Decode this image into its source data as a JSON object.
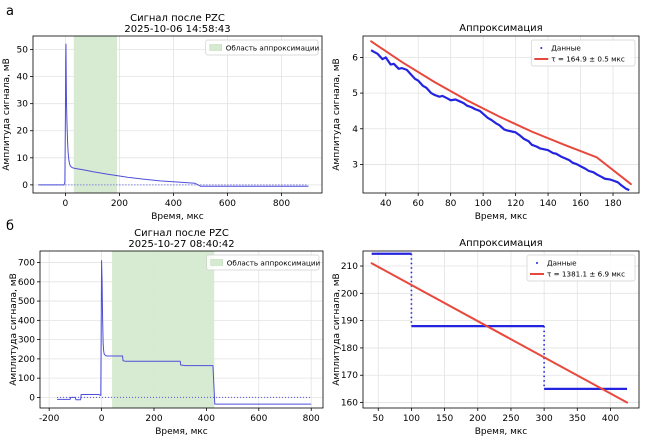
{
  "figure": {
    "row_labels": [
      "а",
      "б"
    ]
  },
  "charts": [
    {
      "id": "a-left",
      "title": "Сигнал после PZC",
      "subtitle": "2025-10-06 14:58:43",
      "xlabel": "Время, мкс",
      "ylabel": "Амплитуда сигнала, мВ",
      "xlim": [
        -120,
        950
      ],
      "ylim": [
        -3,
        55
      ],
      "xticks": [
        0,
        200,
        400,
        600,
        800
      ],
      "yticks": [
        0,
        10,
        20,
        30,
        40,
        50
      ],
      "legend": {
        "position": "top-right",
        "entries": [
          {
            "label": "Область аппроксимации",
            "kind": "patch",
            "color": "#d5ead0"
          }
        ]
      },
      "span": [
        31,
        191
      ],
      "grid": true,
      "series": [
        {
          "kind": "line",
          "color": "#4f4fd9",
          "x": [
            -100,
            -20,
            -5,
            -2,
            0,
            1,
            2,
            3,
            4,
            6,
            8,
            10,
            13,
            16,
            20,
            25,
            31,
            40,
            60,
            80,
            100,
            130,
            160,
            191,
            230,
            280,
            350,
            420,
            480,
            500,
            600,
            700,
            800,
            900
          ],
          "y": [
            0,
            0,
            0,
            1,
            25,
            45,
            52,
            40,
            30,
            22,
            16,
            12,
            9,
            7.5,
            6.8,
            6.4,
            6.2,
            6.0,
            5.7,
            5.3,
            4.9,
            4.4,
            3.9,
            3.4,
            2.8,
            2.2,
            1.5,
            1.0,
            0.6,
            -0.5,
            -0.5,
            -0.5,
            -0.5,
            -0.5
          ]
        },
        {
          "kind": "dotted",
          "color": "#4f4fd9",
          "x": [
            -100,
            900
          ],
          "y": [
            0,
            0
          ]
        }
      ]
    },
    {
      "id": "a-right",
      "title": "Аппроксимация",
      "xlabel": "Время, мкс",
      "ylabel": "Амплитуда сигнала, мВ",
      "xlim": [
        26,
        196
      ],
      "ylim": [
        2.2,
        6.6
      ],
      "xticks": [
        40,
        60,
        80,
        100,
        120,
        140,
        160,
        180
      ],
      "yticks": [
        3,
        4,
        5,
        6
      ],
      "legend": {
        "position": "top-right",
        "entries": [
          {
            "label": "Данные",
            "kind": "dots",
            "color": "#2424e0"
          },
          {
            "label": "τ = 164.9 ± 0.5 мкс",
            "kind": "line",
            "color": "#e8483c"
          }
        ]
      },
      "grid": true,
      "series": [
        {
          "kind": "thick",
          "color": "#2424e0",
          "x": [
            31,
            33,
            35,
            38,
            40,
            43,
            45,
            48,
            50,
            53,
            55,
            58,
            60,
            63,
            65,
            68,
            70,
            73,
            75,
            78,
            80,
            83,
            85,
            88,
            90,
            93,
            95,
            98,
            100,
            103,
            105,
            108,
            110,
            113,
            115,
            118,
            120,
            123,
            125,
            128,
            130,
            133,
            135,
            138,
            140,
            143,
            145,
            148,
            150,
            153,
            155,
            158,
            160,
            163,
            165,
            168,
            170,
            173,
            175,
            178,
            180,
            183,
            185,
            188,
            190
          ],
          "y": [
            6.2,
            6.15,
            6.1,
            5.95,
            6.0,
            5.8,
            5.82,
            5.68,
            5.7,
            5.65,
            5.55,
            5.4,
            5.35,
            5.2,
            5.15,
            5.0,
            4.95,
            4.9,
            4.92,
            4.85,
            4.8,
            4.82,
            4.78,
            4.72,
            4.65,
            4.6,
            4.55,
            4.5,
            4.42,
            4.3,
            4.25,
            4.15,
            4.1,
            3.98,
            3.95,
            3.92,
            3.9,
            3.8,
            3.72,
            3.65,
            3.55,
            3.5,
            3.45,
            3.42,
            3.4,
            3.32,
            3.3,
            3.22,
            3.18,
            3.12,
            3.05,
            3.0,
            2.95,
            2.88,
            2.82,
            2.78,
            2.72,
            2.65,
            2.6,
            2.58,
            2.55,
            2.5,
            2.42,
            2.32,
            2.28
          ]
        },
        {
          "kind": "fit",
          "color": "#e8483c",
          "x": [
            31,
            50,
            70,
            90,
            110,
            130,
            150,
            170,
            191
          ],
          "y": [
            6.45,
            5.87,
            5.31,
            4.8,
            4.34,
            3.92,
            3.55,
            3.2,
            2.45
          ]
        }
      ]
    },
    {
      "id": "b-left",
      "title": "Сигнал после PZC",
      "subtitle": "2025-10-27 08:40:42",
      "xlabel": "Время, мкс",
      "ylabel": "Амплитуда сигнала, мВ",
      "xlim": [
        -235,
        845
      ],
      "ylim": [
        -55,
        760
      ],
      "xticks": [
        -200,
        0,
        200,
        400,
        600,
        800
      ],
      "yticks": [
        0,
        100,
        200,
        300,
        400,
        500,
        600,
        700
      ],
      "legend": {
        "position": "top-right",
        "entries": [
          {
            "label": "Область аппроксимации",
            "kind": "patch",
            "color": "#d5ead0"
          }
        ]
      },
      "span": [
        40,
        430
      ],
      "grid": true,
      "series": [
        {
          "kind": "line",
          "color": "#4f4fd9",
          "x": [
            -170,
            -120,
            -118,
            -100,
            -98,
            -80,
            -78,
            -10,
            -3,
            0,
            2,
            4,
            6,
            8,
            10,
            15,
            20,
            40,
            60,
            80,
            82,
            90,
            100,
            120,
            150,
            200,
            250,
            300,
            302,
            320,
            350,
            400,
            425,
            428,
            432,
            800
          ],
          "y": [
            -10,
            -10,
            0,
            0,
            -12,
            -12,
            15,
            15,
            10,
            710,
            600,
            400,
            280,
            240,
            225,
            217,
            215,
            215,
            215,
            215,
            190,
            188,
            188,
            188,
            188,
            188,
            188,
            188,
            168,
            165,
            165,
            165,
            165,
            80,
            -35,
            -35
          ]
        },
        {
          "kind": "dotted",
          "color": "#4f4fd9",
          "x": [
            -170,
            800
          ],
          "y": [
            0,
            0
          ]
        }
      ]
    },
    {
      "id": "b-right",
      "title": "Аппроксимация",
      "xlabel": "Время, мкс",
      "ylabel": "Амплитуда сигнала, мВ",
      "xlim": [
        27,
        443
      ],
      "ylim": [
        158,
        215.5
      ],
      "xticks": [
        50,
        100,
        150,
        200,
        250,
        300,
        350,
        400
      ],
      "yticks": [
        160,
        170,
        180,
        190,
        200,
        210
      ],
      "legend": {
        "position": "top-right",
        "entries": [
          {
            "label": "Данные",
            "kind": "dots",
            "color": "#2424e0"
          },
          {
            "label": "τ = 1381.1 ± 6.9 мкс",
            "kind": "line",
            "color": "#e8483c"
          }
        ]
      },
      "grid": true,
      "series": [
        {
          "kind": "steps",
          "color": "#2424e0",
          "segments": [
            {
              "x": [
                40,
                100
              ],
              "y": [
                214.5,
                214.5
              ]
            },
            {
              "x": [
                100,
                100
              ],
              "y": [
                214.5,
                188
              ]
            },
            {
              "x": [
                100,
                300
              ],
              "y": [
                188,
                188
              ]
            },
            {
              "x": [
                300,
                300
              ],
              "y": [
                188,
                165
              ]
            },
            {
              "x": [
                300,
                425
              ],
              "y": [
                165,
                165
              ]
            }
          ]
        },
        {
          "kind": "fit",
          "color": "#e8483c",
          "x": [
            40,
            425
          ],
          "y": [
            211,
            160
          ]
        }
      ]
    }
  ]
}
